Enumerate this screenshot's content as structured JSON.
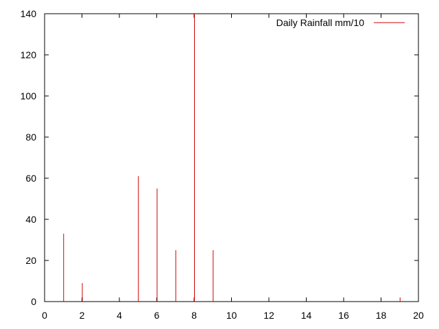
{
  "chart_data": {
    "type": "bar",
    "legend": {
      "label": "Daily Rainfall mm/10",
      "position": "top-right"
    },
    "series": [
      {
        "name": "Daily Rainfall mm/10",
        "color": "#cc0000",
        "x": [
          1,
          2,
          5,
          6,
          7,
          8,
          9,
          19
        ],
        "values": [
          33,
          9,
          61,
          55,
          25,
          140,
          25,
          2
        ]
      }
    ],
    "xlim": [
      0,
      20
    ],
    "ylim": [
      0,
      140
    ],
    "xticks": [
      "0",
      "2",
      "4",
      "6",
      "8",
      "10",
      "12",
      "14",
      "16",
      "18",
      "20"
    ],
    "yticks": [
      "0",
      "20",
      "40",
      "60",
      "80",
      "100",
      "120",
      "140"
    ],
    "grid": false
  }
}
